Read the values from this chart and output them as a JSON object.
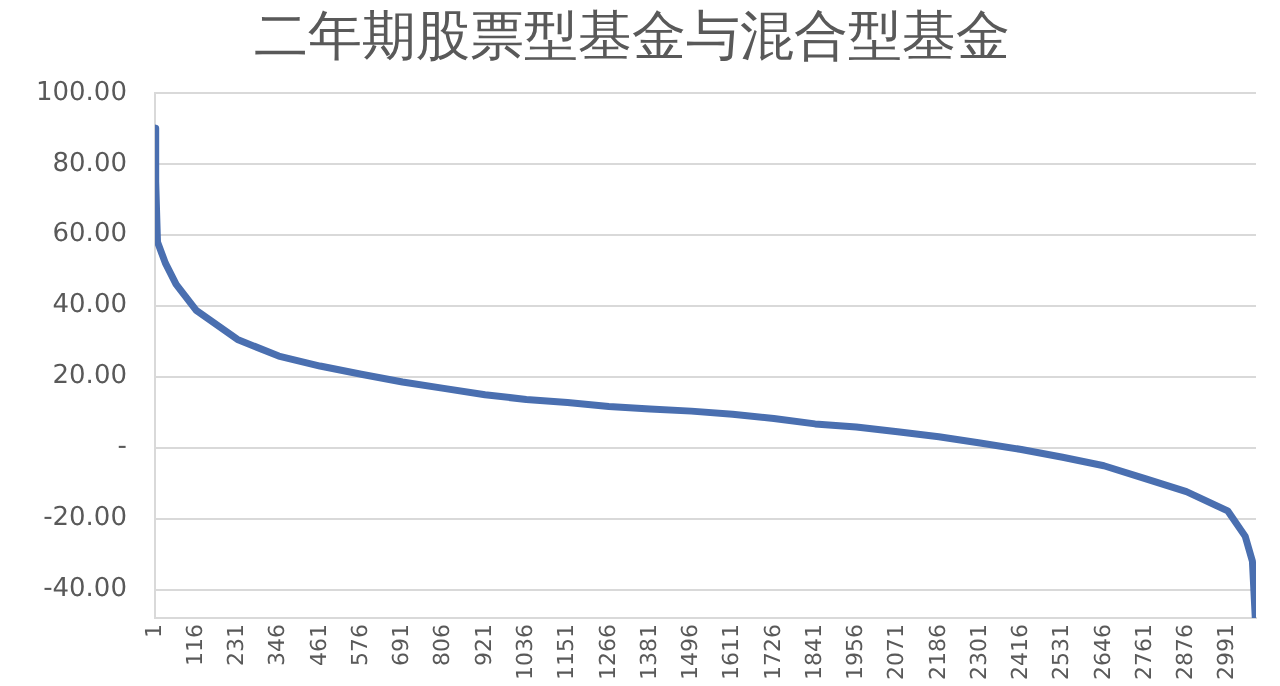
{
  "chart_data": {
    "type": "line",
    "title": "二年期股票型基金与混合型基金",
    "x": [
      1,
      3,
      8,
      30,
      60,
      116,
      231,
      346,
      461,
      576,
      691,
      806,
      921,
      1036,
      1151,
      1266,
      1381,
      1496,
      1611,
      1726,
      1841,
      1956,
      2071,
      2186,
      2301,
      2416,
      2531,
      2646,
      2761,
      2876,
      2991,
      3040,
      3060,
      3068
    ],
    "series": [
      {
        "color": "#4a6fb0",
        "values": [
          90,
          75,
          58,
          52,
          46,
          38.7,
          30.5,
          25.8,
          23,
          20.7,
          18.5,
          16.7,
          14.9,
          13.6,
          12.7,
          11.6,
          10.9,
          10.3,
          9.4,
          8.2,
          6.7,
          5.8,
          4.5,
          3.1,
          1.3,
          -0.5,
          -2.7,
          -5.1,
          -8.7,
          -12.4,
          -17.8,
          -25,
          -32,
          -48
        ]
      }
    ],
    "xlim": [
      1,
      3070
    ],
    "xticks": [
      1,
      116,
      231,
      346,
      461,
      576,
      691,
      806,
      921,
      1036,
      1151,
      1266,
      1381,
      1496,
      1611,
      1726,
      1841,
      1956,
      2071,
      2186,
      2301,
      2416,
      2531,
      2646,
      2761,
      2876,
      2991
    ],
    "ylim": [
      -48,
      100
    ],
    "yticks": [
      {
        "value": -40,
        "label": "-40.00"
      },
      {
        "value": -20,
        "label": "-20.00"
      },
      {
        "value": 0,
        "label": "-"
      },
      {
        "value": 20,
        "label": "20.00"
      },
      {
        "value": 40,
        "label": "40.00"
      },
      {
        "value": 60,
        "label": "60.00"
      },
      {
        "value": 80,
        "label": "80.00"
      },
      {
        "value": 100,
        "label": "100.00"
      }
    ],
    "grid": "y",
    "legend": false,
    "marker": "none",
    "line_style": "solid"
  }
}
